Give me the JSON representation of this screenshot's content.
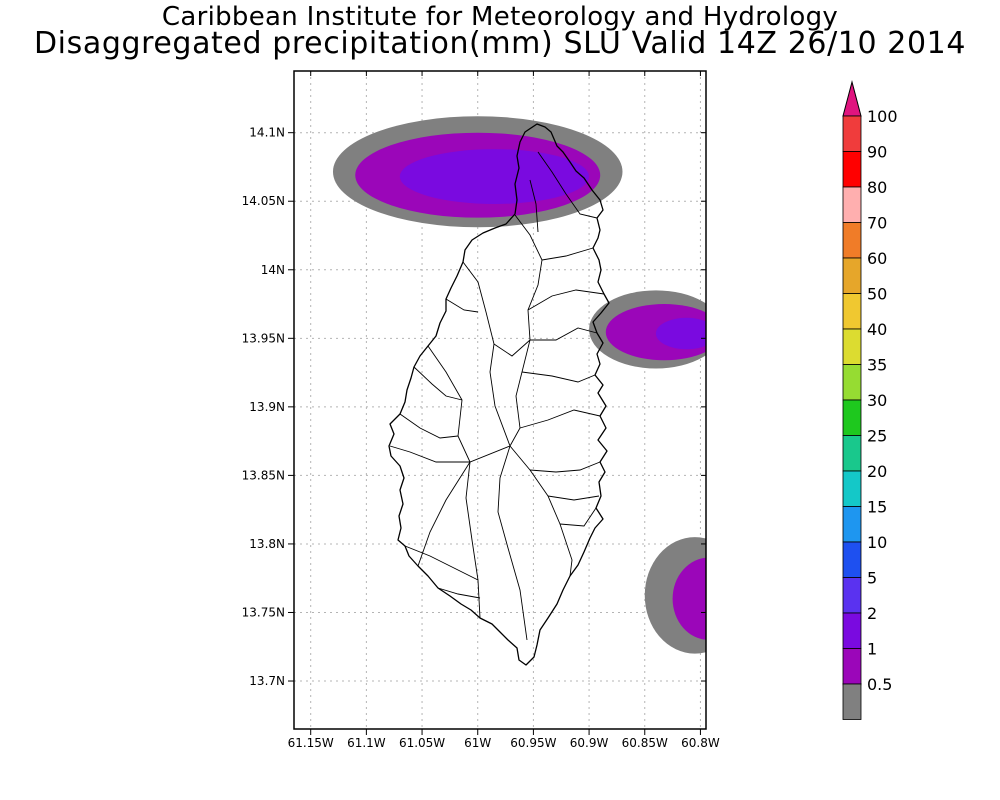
{
  "header": {
    "line1": "Caribbean Institute for Meteorology and Hydrology",
    "line2": "Disaggregated precipitation(mm) SLU Valid 14Z 26/10 2014"
  },
  "map": {
    "lon_range": [
      -61.165,
      -60.795
    ],
    "lat_range": [
      13.665,
      14.145
    ],
    "x_ticks": [
      "61.15W",
      "61.1W",
      "61.05W",
      "61W",
      "60.95W",
      "60.9W",
      "60.85W",
      "60.8W"
    ],
    "x_tick_values": [
      -61.15,
      -61.1,
      -61.05,
      -61.0,
      -60.95,
      -60.9,
      -60.85,
      -60.8
    ],
    "y_ticks": [
      "14.1N",
      "14.05N",
      "14N",
      "13.95N",
      "13.9N",
      "13.85N",
      "13.8N",
      "13.75N",
      "13.7N"
    ],
    "y_tick_values": [
      14.1,
      14.05,
      14.0,
      13.95,
      13.9,
      13.85,
      13.8,
      13.75,
      13.7
    ],
    "precip_areas": [
      {
        "name": "north-rain-band",
        "layers": [
          {
            "level": "0.5-1",
            "color": "#808080",
            "lon": [
              -61.13,
              -60.87
            ],
            "lat": [
              14.031,
              14.112
            ]
          },
          {
            "level": "1-2",
            "color": "#9b06b9",
            "lon": [
              -61.11,
              -60.89
            ],
            "lat": [
              14.038,
              14.1
            ]
          },
          {
            "level": "2-5",
            "color": "#7a0ae0",
            "lon": [
              -61.07,
              -60.9
            ],
            "lat": [
              14.048,
              14.088
            ]
          }
        ]
      },
      {
        "name": "east-rain-band",
        "layers": [
          {
            "level": "0.5-1",
            "color": "#808080",
            "lon": [
              -60.9,
              -60.78
            ],
            "lat": [
              13.928,
              13.985
            ]
          },
          {
            "level": "1-2",
            "color": "#9b06b9",
            "lon": [
              -60.885,
              -60.78
            ],
            "lat": [
              13.934,
              13.975
            ]
          },
          {
            "level": "2-5",
            "color": "#7a0ae0",
            "lon": [
              -60.84,
              -60.785
            ],
            "lat": [
              13.942,
              13.965
            ]
          }
        ]
      },
      {
        "name": "southeast-rain-band",
        "layers": [
          {
            "level": "0.5-1",
            "color": "#808080",
            "lon": [
              -60.85,
              -60.76
            ],
            "lat": [
              13.72,
              13.805
            ]
          },
          {
            "level": "1-2",
            "color": "#9b06b9",
            "lon": [
              -60.825,
              -60.76
            ],
            "lat": [
              13.73,
              13.79
            ]
          }
        ]
      }
    ]
  },
  "colorbar": {
    "top_color": "#e0147f",
    "bottom_color": "#ffffff",
    "bins": [
      {
        "label": "100",
        "color": "#f03c3c"
      },
      {
        "label": "90",
        "color": "#ff0000"
      },
      {
        "label": "80",
        "color": "#ffafaf"
      },
      {
        "label": "70",
        "color": "#f07c28"
      },
      {
        "label": "60",
        "color": "#e6a62a"
      },
      {
        "label": "50",
        "color": "#f0c830"
      },
      {
        "label": "40",
        "color": "#dcdc30"
      },
      {
        "label": "35",
        "color": "#96dc32"
      },
      {
        "label": "30",
        "color": "#1ec81e"
      },
      {
        "label": "25",
        "color": "#19c88c"
      },
      {
        "label": "20",
        "color": "#14c8c8"
      },
      {
        "label": "15",
        "color": "#1e96f0"
      },
      {
        "label": "10",
        "color": "#1e50f0"
      },
      {
        "label": "5",
        "color": "#5a32f0"
      },
      {
        "label": "2",
        "color": "#7a0ae0"
      },
      {
        "label": "1",
        "color": "#9b06b9"
      },
      {
        "label": "0.5",
        "color": "#808080"
      }
    ]
  }
}
